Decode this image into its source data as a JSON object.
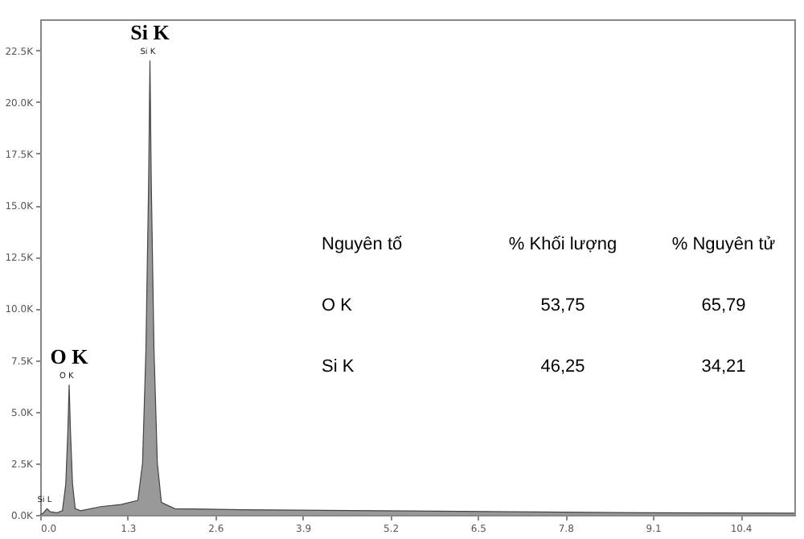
{
  "chart_data": {
    "type": "area",
    "color": "#6e6e6e",
    "x": [
      0.0,
      0.05,
      0.1,
      0.15,
      0.25,
      0.33,
      0.38,
      0.41,
      0.43,
      0.45,
      0.48,
      0.52,
      0.6,
      0.9,
      1.2,
      1.45,
      1.52,
      1.57,
      1.61,
      1.63,
      1.65,
      1.69,
      1.74,
      1.8,
      2.0,
      3.0,
      5.0,
      7.0,
      9.0,
      11.2
    ],
    "values": [
      0,
      100,
      300,
      150,
      100,
      200,
      1500,
      4000,
      6300,
      4000,
      1500,
      300,
      200,
      400,
      500,
      700,
      2500,
      8000,
      16000,
      22000,
      16000,
      8000,
      2500,
      600,
      300,
      250,
      200,
      150,
      100,
      80
    ],
    "xlim": [
      0,
      11.2
    ],
    "ylim": [
      0,
      24000
    ],
    "xticks": [
      {
        "value": 0,
        "label": "0.0"
      },
      1.3,
      2.6,
      3.9,
      5.2,
      6.5,
      7.8,
      9.1,
      10.4
    ],
    "yticks": [
      {
        "value": 0,
        "label": "0.0K"
      },
      {
        "value": 2500,
        "label": "2.5K"
      },
      {
        "value": 5000,
        "label": "5.0K"
      },
      {
        "value": 7500,
        "label": "7.5K"
      },
      {
        "value": 10000,
        "label": "10.0K"
      },
      {
        "value": 12500,
        "label": "12.5K"
      },
      {
        "value": 15000,
        "label": "15.0K"
      },
      {
        "value": 17500,
        "label": "17.5K"
      },
      {
        "value": 20000,
        "label": "20.0K"
      },
      {
        "value": 22500,
        "label": "22.5K"
      }
    ],
    "grid": false,
    "annotations": [
      {
        "text": "O K",
        "x": 0.43,
        "y": 6300
      },
      {
        "text": "Si K",
        "x": 1.63,
        "y": 22000
      },
      {
        "text": "O K",
        "x": 0.43,
        "y": 6300
      },
      {
        "text": "Si K",
        "x": 1.63,
        "y": 22000
      },
      {
        "text": "Si L",
        "x": 0.1,
        "y": 300
      },
      "Nguyên tố",
      "% Khối lượng",
      "% Nguyên tử",
      "O  K",
      "53,75",
      "65,79",
      "Si K",
      "46,25",
      "34,21"
    ]
  }
}
